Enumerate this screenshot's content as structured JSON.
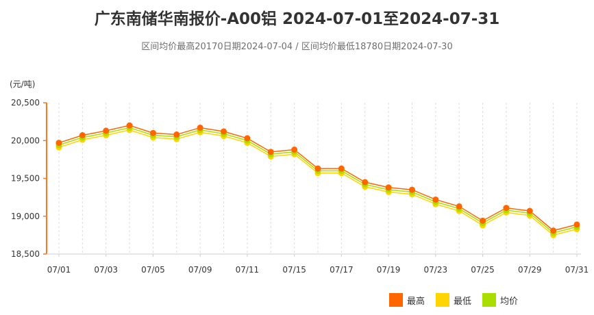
{
  "chart_data": {
    "type": "line",
    "title": "广东南储华南报价-A00铝 2024-07-01至2024-07-31",
    "subtitle": "区间均价最高20170日期2024-07-04 / 区间均价最低18780日期2024-07-30",
    "ylabel": "(元/吨)",
    "xlabel": "",
    "ylim": [
      18500,
      20500
    ],
    "yticks": [
      "18,500",
      "19,000",
      "19,500",
      "20,000",
      "20,500"
    ],
    "ytick_values": [
      18500,
      19000,
      19500,
      20000,
      20500
    ],
    "categories": [
      "07/01",
      "07/02",
      "07/03",
      "07/04",
      "07/05",
      "07/08",
      "07/09",
      "07/10",
      "07/11",
      "07/12",
      "07/15",
      "07/16",
      "07/17",
      "07/18",
      "07/19",
      "07/22",
      "07/23",
      "07/24",
      "07/25",
      "07/26",
      "07/29",
      "07/30",
      "07/31"
    ],
    "xtick_labels": [
      "07/01",
      "07/03",
      "07/05",
      "07/09",
      "07/11",
      "07/15",
      "07/17",
      "07/19",
      "07/23",
      "07/25",
      "07/29",
      "07/31"
    ],
    "xtick_indices": [
      0,
      2,
      4,
      6,
      8,
      10,
      12,
      14,
      16,
      18,
      20,
      22
    ],
    "series": [
      {
        "name": "最高",
        "color": "#ff6600",
        "values": [
          19970,
          20070,
          20130,
          20200,
          20100,
          20080,
          20170,
          20120,
          20030,
          19850,
          19880,
          19630,
          19630,
          19450,
          19380,
          19350,
          19220,
          19130,
          18940,
          19110,
          19070,
          18810,
          18890
        ]
      },
      {
        "name": "最低",
        "color": "#ffd500",
        "values": [
          19910,
          20010,
          20070,
          20140,
          20040,
          20020,
          20110,
          20060,
          19970,
          19790,
          19820,
          19570,
          19570,
          19390,
          19320,
          19290,
          19160,
          19070,
          18880,
          19050,
          19010,
          18750,
          18830
        ]
      },
      {
        "name": "均价",
        "color": "#aadd00",
        "values": [
          19940,
          20040,
          20100,
          20170,
          20070,
          20050,
          20140,
          20090,
          20000,
          19820,
          19850,
          19600,
          19600,
          19420,
          19350,
          19320,
          19190,
          19100,
          18910,
          19080,
          19040,
          18780,
          18860
        ]
      }
    ],
    "grid": true,
    "legend": "bottom-right"
  }
}
